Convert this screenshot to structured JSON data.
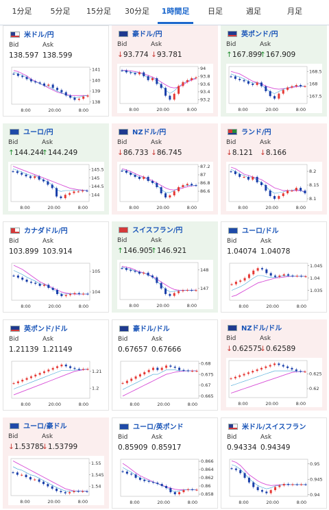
{
  "tabs": [
    "1分足",
    "5分足",
    "15分足",
    "30分足",
    "1時間足",
    "日足",
    "週足",
    "月足"
  ],
  "active_tab": "1時間足",
  "labels": {
    "bid": "Bid",
    "ask": "Ask"
  },
  "colors": {
    "up_bg": "#ebf4eb",
    "down_bg": "#fbeeee",
    "up": "#e53935",
    "down": "#1a3faa",
    "ma": "#d64ad6",
    "accent": "#1a66cc"
  },
  "pairs": [
    {
      "name": "米ドル/円",
      "bid": "138.597",
      "ask": "138.599",
      "dir": "none",
      "flags": [
        "us",
        "jp"
      ],
      "yticks": [
        "141",
        "140",
        "139",
        "138"
      ],
      "xticks": [
        "8:00",
        "20:00",
        "8:00"
      ],
      "trend": "down",
      "chart": {
        "y": [
          140.6,
          140.4,
          140.3,
          140.1,
          139.9,
          139.8,
          139.7,
          139.5,
          139.6,
          139.3,
          139.1,
          138.9,
          138.6,
          138.4,
          138.2,
          138.3,
          138.5,
          138.6
        ],
        "ma": [
          140.9,
          140.8,
          140.6,
          140.4,
          140.1,
          139.9,
          139.7,
          139.5,
          139.3,
          139.1,
          138.9,
          138.8,
          138.7,
          138.6,
          138.6,
          138.6,
          138.6,
          138.6
        ],
        "ylim": [
          137.8,
          141.2
        ]
      }
    },
    {
      "name": "豪ドル/円",
      "bid": "93.774",
      "ask": "93.781",
      "dir": "down",
      "flags": [
        "au",
        "jp"
      ],
      "yticks": [
        "94",
        "93.8",
        "93.6",
        "93.4",
        "93.2"
      ],
      "xticks": [
        "8:00",
        "20:00",
        "8:00"
      ],
      "trend": "down",
      "chart": {
        "y": [
          93.95,
          93.9,
          93.88,
          93.85,
          93.9,
          93.8,
          93.7,
          93.75,
          93.6,
          93.5,
          93.3,
          93.2,
          93.35,
          93.55,
          93.65,
          93.7,
          93.75,
          93.77
        ],
        "ma": [
          93.95,
          93.95,
          93.94,
          93.92,
          93.9,
          93.86,
          93.82,
          93.78,
          93.72,
          93.65,
          93.58,
          93.52,
          93.5,
          93.52,
          93.58,
          93.65,
          93.7,
          93.74
        ],
        "ylim": [
          93.1,
          94.05
        ]
      }
    },
    {
      "name": "英ポンド/円",
      "bid": "167.899",
      "ask": "167.909",
      "dir": "up",
      "flags": [
        "gb",
        "jp"
      ],
      "yticks": [
        "168.5",
        "168",
        "167.5"
      ],
      "xticks": [
        "8:00",
        "20:00",
        "8:00"
      ],
      "trend": "down",
      "chart": {
        "y": [
          168.3,
          168.2,
          168.15,
          168.1,
          168.0,
          167.95,
          168.05,
          167.9,
          167.7,
          167.5,
          167.4,
          167.6,
          167.75,
          167.85,
          167.9,
          167.95,
          167.9,
          167.9
        ],
        "ma": [
          168.5,
          168.45,
          168.4,
          168.3,
          168.2,
          168.1,
          168.05,
          168.0,
          167.9,
          167.85,
          167.8,
          167.78,
          167.8,
          167.82,
          167.85,
          167.88,
          167.9,
          167.9
        ],
        "ylim": [
          167.2,
          168.7
        ]
      }
    },
    {
      "name": "ユーロ/円",
      "bid": "144.244",
      "ask": "144.249",
      "dir": "up",
      "flags": [
        "eu",
        "jp"
      ],
      "yticks": [
        "145.5",
        "145",
        "144.5",
        "144"
      ],
      "xticks": [
        "8:00",
        "20:00",
        "8:00"
      ],
      "trend": "down",
      "chart": {
        "y": [
          145.4,
          145.3,
          145.2,
          145.1,
          145.0,
          145.1,
          144.9,
          144.8,
          144.6,
          144.4,
          143.9,
          143.8,
          144.0,
          144.1,
          144.2,
          144.2,
          144.25,
          144.24
        ],
        "ma": [
          145.7,
          145.6,
          145.5,
          145.4,
          145.3,
          145.2,
          145.1,
          145.0,
          144.9,
          144.8,
          144.7,
          144.6,
          144.5,
          144.4,
          144.35,
          144.3,
          144.28,
          144.26
        ],
        "ylim": [
          143.6,
          145.8
        ]
      }
    },
    {
      "name": "NZドル/円",
      "bid": "86.733",
      "ask": "86.745",
      "dir": "down",
      "flags": [
        "nz",
        "jp"
      ],
      "yticks": [
        "87.2",
        "87",
        "86.8",
        "86.6"
      ],
      "xticks": [
        "8:00",
        "20:00",
        "8:00"
      ],
      "trend": "down",
      "chart": {
        "y": [
          87.1,
          87.05,
          87.0,
          86.95,
          86.9,
          86.95,
          86.85,
          86.8,
          86.7,
          86.55,
          86.45,
          86.5,
          86.6,
          86.7,
          86.75,
          86.78,
          86.75,
          86.74
        ],
        "ma": [
          87.15,
          87.12,
          87.08,
          87.03,
          86.98,
          86.95,
          86.9,
          86.86,
          86.8,
          86.74,
          86.68,
          86.64,
          86.63,
          86.65,
          86.68,
          86.71,
          86.73,
          86.74
        ],
        "ylim": [
          86.35,
          87.25
        ]
      }
    },
    {
      "name": "ランド/円",
      "bid": "8.121",
      "ask": "8.166",
      "dir": "down",
      "flags": [
        "za",
        "jp"
      ],
      "yticks": [
        "8.2",
        "8.15",
        "8.1"
      ],
      "xticks": [
        "8:00",
        "20:00",
        "8:00"
      ],
      "trend": "down",
      "chart": {
        "y": [
          8.2,
          8.19,
          8.18,
          8.18,
          8.17,
          8.18,
          8.16,
          8.15,
          8.13,
          8.11,
          8.1,
          8.11,
          8.12,
          8.13,
          8.13,
          8.14,
          8.13,
          8.12
        ],
        "ma": [
          8.215,
          8.21,
          8.2,
          8.19,
          8.185,
          8.18,
          8.175,
          8.17,
          8.16,
          8.15,
          8.14,
          8.135,
          8.13,
          8.13,
          8.13,
          8.13,
          8.13,
          8.125
        ],
        "ylim": [
          8.09,
          8.225
        ]
      }
    },
    {
      "name": "カナダドル/円",
      "bid": "103.899",
      "ask": "103.914",
      "dir": "none",
      "flags": [
        "ca",
        "jp"
      ],
      "yticks": [
        "105",
        "104"
      ],
      "xticks": [
        "8:00",
        "20:00",
        "8:00"
      ],
      "trend": "down",
      "chart": {
        "y": [
          104.8,
          104.7,
          104.6,
          104.5,
          104.45,
          104.4,
          104.3,
          104.35,
          104.2,
          104.1,
          103.9,
          103.8,
          103.85,
          103.9,
          103.95,
          103.9,
          103.92,
          103.9
        ],
        "ma": [
          105.3,
          105.2,
          105.1,
          104.95,
          104.8,
          104.65,
          104.5,
          104.4,
          104.3,
          104.2,
          104.1,
          104.0,
          103.95,
          103.92,
          103.9,
          103.9,
          103.9,
          103.9
        ],
        "ylim": [
          103.6,
          105.4
        ]
      }
    },
    {
      "name": "スイスフラン/円",
      "bid": "146.905",
      "ask": "146.921",
      "dir": "up",
      "flags": [
        "ch",
        "jp"
      ],
      "yticks": [
        "148",
        "147"
      ],
      "xticks": [
        "8:00",
        "20:00",
        "8:00"
      ],
      "trend": "down",
      "chart": {
        "y": [
          148.1,
          148.0,
          147.95,
          147.9,
          147.8,
          147.85,
          147.7,
          147.6,
          147.3,
          147.0,
          146.7,
          146.6,
          146.75,
          146.85,
          146.9,
          146.92,
          146.9,
          146.91
        ],
        "ma": [
          148.2,
          148.15,
          148.1,
          148.0,
          147.9,
          147.85,
          147.75,
          147.65,
          147.5,
          147.35,
          147.2,
          147.05,
          146.95,
          146.9,
          146.9,
          146.9,
          146.9,
          146.91
        ],
        "ylim": [
          146.4,
          148.4
        ]
      }
    },
    {
      "name": "ユーロ/ドル",
      "bid": "1.04074",
      "ask": "1.04078",
      "dir": "none",
      "flags": [
        "eu",
        "us"
      ],
      "yticks": [
        "1.045",
        "1.04",
        "1.035"
      ],
      "xticks": [
        "8:00",
        "20:00",
        "8:00"
      ],
      "trend": "up",
      "chart": {
        "y": [
          1.0375,
          1.0385,
          1.039,
          1.04,
          1.0415,
          1.043,
          1.044,
          1.0435,
          1.042,
          1.041,
          1.0405,
          1.041,
          1.0415,
          1.041,
          1.0408,
          1.0409,
          1.0407,
          1.0407
        ],
        "ma": [
          1.0325,
          1.033,
          1.034,
          1.035,
          1.036,
          1.037,
          1.038,
          1.0385,
          1.039,
          1.0395,
          1.04,
          1.0402,
          1.0404,
          1.0406,
          1.0407,
          1.0407,
          1.0407,
          1.0407
        ],
        "ylim": [
          1.031,
          1.046
        ]
      }
    },
    {
      "name": "英ポンド/ドル",
      "bid": "1.21139",
      "ask": "1.21149",
      "dir": "none",
      "flags": [
        "gb",
        "us"
      ],
      "yticks": [
        "1.21",
        "1.2"
      ],
      "xticks": [
        "8:00",
        "20:00",
        "8:00"
      ],
      "trend": "up",
      "chart": {
        "y": [
          1.203,
          1.204,
          1.205,
          1.206,
          1.207,
          1.208,
          1.209,
          1.21,
          1.211,
          1.212,
          1.213,
          1.214,
          1.213,
          1.212,
          1.2115,
          1.2112,
          1.2114,
          1.2114
        ],
        "ma": [
          1.196,
          1.197,
          1.198,
          1.199,
          1.2,
          1.201,
          1.202,
          1.203,
          1.204,
          1.205,
          1.206,
          1.207,
          1.208,
          1.209,
          1.21,
          1.2105,
          1.211,
          1.2113
        ],
        "ylim": [
          1.194,
          1.216
        ]
      }
    },
    {
      "name": "豪ドル/ドル",
      "bid": "0.67657",
      "ask": "0.67666",
      "dir": "none",
      "flags": [
        "au",
        "us"
      ],
      "yticks": [
        "0.68",
        "0.675",
        "0.67",
        "0.665"
      ],
      "xticks": [
        "8:00",
        "20:00",
        "8:00"
      ],
      "trend": "up",
      "chart": {
        "y": [
          0.671,
          0.672,
          0.673,
          0.674,
          0.675,
          0.676,
          0.677,
          0.678,
          0.677,
          0.678,
          0.679,
          0.6785,
          0.678,
          0.677,
          0.6768,
          0.6766,
          0.6766,
          0.6766
        ],
        "ma": [
          0.665,
          0.666,
          0.667,
          0.668,
          0.669,
          0.67,
          0.671,
          0.672,
          0.673,
          0.674,
          0.675,
          0.6755,
          0.676,
          0.6763,
          0.6765,
          0.6766,
          0.6766,
          0.6766
        ],
        "ylim": [
          0.664,
          0.681
        ]
      }
    },
    {
      "name": "NZドル/ドル",
      "bid": "0.62575",
      "ask": "0.62589",
      "dir": "down",
      "flags": [
        "nz",
        "us"
      ],
      "yticks": [
        "0.625",
        "0.62"
      ],
      "xticks": [
        "8:00",
        "20:00",
        "8:00"
      ],
      "trend": "up",
      "chart": {
        "y": [
          0.6235,
          0.624,
          0.6245,
          0.625,
          0.6255,
          0.626,
          0.6265,
          0.627,
          0.6275,
          0.628,
          0.6285,
          0.628,
          0.6275,
          0.627,
          0.6265,
          0.626,
          0.6258,
          0.6258
        ],
        "ma": [
          0.6185,
          0.619,
          0.6195,
          0.62,
          0.6205,
          0.621,
          0.6215,
          0.622,
          0.6225,
          0.623,
          0.6235,
          0.624,
          0.6245,
          0.625,
          0.6255,
          0.6257,
          0.6258,
          0.6258
        ],
        "ylim": [
          0.617,
          0.6295
        ]
      }
    },
    {
      "name": "ユーロ/豪ドル",
      "bid": "1.53785",
      "ask": "1.53799",
      "dir": "down",
      "flags": [
        "eu",
        "au"
      ],
      "yticks": [
        "1.55",
        "1.545",
        "1.54"
      ],
      "xticks": [
        "8:00",
        "20:00",
        "8:00"
      ],
      "trend": "down",
      "chart": {
        "y": [
          1.546,
          1.545,
          1.545,
          1.544,
          1.543,
          1.543,
          1.542,
          1.541,
          1.54,
          1.539,
          1.538,
          1.5375,
          1.537,
          1.5375,
          1.538,
          1.5378,
          1.5379,
          1.5378
        ],
        "ma": [
          1.551,
          1.55,
          1.549,
          1.548,
          1.547,
          1.546,
          1.545,
          1.544,
          1.543,
          1.542,
          1.541,
          1.54,
          1.539,
          1.5385,
          1.538,
          1.538,
          1.538,
          1.5379
        ],
        "ylim": [
          1.536,
          1.552
        ]
      }
    },
    {
      "name": "ユーロ/英ポンド",
      "bid": "0.85909",
      "ask": "0.85917",
      "dir": "none",
      "flags": [
        "eu",
        "gb"
      ],
      "yticks": [
        "0.866",
        "0.864",
        "0.862",
        "0.86",
        "0.858"
      ],
      "xticks": [
        "8:00",
        "20:00",
        "8:00"
      ],
      "trend": "down",
      "chart": {
        "y": [
          0.8635,
          0.863,
          0.8628,
          0.862,
          0.8615,
          0.8612,
          0.861,
          0.8608,
          0.8605,
          0.86,
          0.8595,
          0.8585,
          0.858,
          0.8585,
          0.859,
          0.8592,
          0.8591,
          0.8591
        ],
        "ma": [
          0.8655,
          0.8648,
          0.864,
          0.8632,
          0.8625,
          0.862,
          0.8615,
          0.861,
          0.8606,
          0.8602,
          0.8598,
          0.8595,
          0.8592,
          0.8591,
          0.8591,
          0.8591,
          0.8591,
          0.8591
        ],
        "ylim": [
          0.8575,
          0.8665
        ]
      }
    },
    {
      "name": "米ドル/スイスフラン",
      "bid": "0.94334",
      "ask": "0.94349",
      "dir": "none",
      "flags": [
        "us",
        "ch"
      ],
      "yticks": [
        "0.95",
        "0.945",
        "0.94"
      ],
      "xticks": [
        "8:00",
        "20:00",
        "8:00"
      ],
      "trend": "down",
      "chart": {
        "y": [
          0.9485,
          0.948,
          0.947,
          0.9455,
          0.944,
          0.9425,
          0.9415,
          0.941,
          0.9405,
          0.9415,
          0.9425,
          0.943,
          0.9435,
          0.9432,
          0.9434,
          0.9433,
          0.9434,
          0.9433
        ],
        "ma": [
          0.951,
          0.9505,
          0.9495,
          0.948,
          0.9465,
          0.9455,
          0.9445,
          0.9438,
          0.9433,
          0.943,
          0.9431,
          0.9432,
          0.9433,
          0.9433,
          0.9433,
          0.9433,
          0.9433,
          0.9433
        ],
        "ylim": [
          0.9395,
          0.9515
        ]
      }
    }
  ]
}
